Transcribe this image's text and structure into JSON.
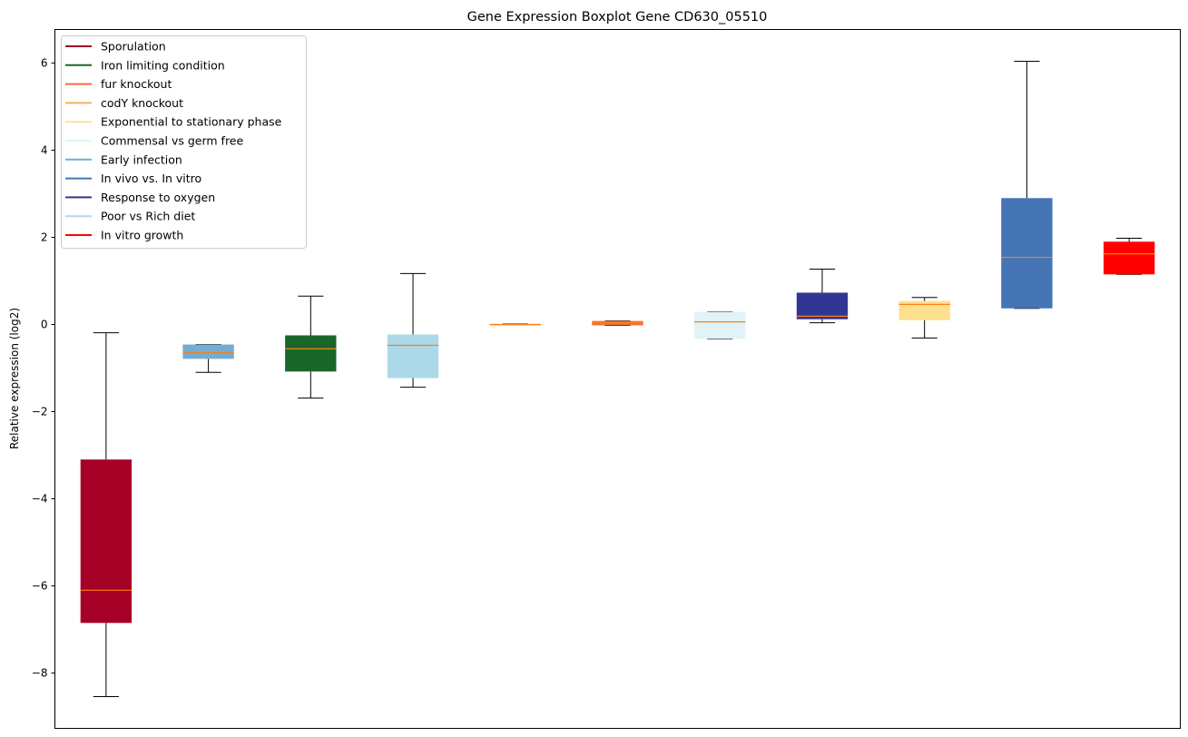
{
  "chart_data": {
    "type": "box",
    "title": "Gene Expression Boxplot Gene CD630_05510",
    "xlabel": "",
    "ylabel": "Relative expression (log2)",
    "ylim": [
      -9.27,
      6.77
    ],
    "xlim": [
      0.5,
      11.5
    ],
    "yticks": [
      6,
      4,
      2,
      0,
      -2,
      -4,
      -6,
      -8
    ],
    "ytick_labels": [
      "6",
      "4",
      "2",
      "0",
      "−2",
      "−4",
      "−6",
      "−8"
    ],
    "legend_position": "upper-left",
    "median_color": "#ff7f0e",
    "boxes": [
      {
        "name": "Sporulation",
        "color": "#a50026",
        "min": -8.54,
        "q1": -6.85,
        "median": -6.1,
        "q3": -3.1,
        "max": -0.19
      },
      {
        "name": "Early infection",
        "color": "#74add1",
        "min": -1.1,
        "q1": -0.79,
        "median": -0.65,
        "q3": -0.46,
        "max": -0.46
      },
      {
        "name": "Iron limiting condition",
        "color": "#1a6629",
        "min": -1.69,
        "q1": -1.08,
        "median": -0.56,
        "q3": -0.25,
        "max": 0.65
      },
      {
        "name": "Poor vs Rich diet",
        "color": "#abd9e9",
        "min": -1.44,
        "q1": -1.23,
        "median": -0.48,
        "q3": -0.23,
        "max": 1.17
      },
      {
        "name": "codY knockout",
        "color": "#fdae61",
        "min": -0.01,
        "q1": -0.01,
        "median": 0.0,
        "q3": 0.01,
        "max": 0.01
      },
      {
        "name": "fur knockout",
        "color": "#f46d43",
        "min": -0.02,
        "q1": -0.02,
        "median": 0.04,
        "q3": 0.08,
        "max": 0.08
      },
      {
        "name": "Commensal vs germ free",
        "color": "#e0f3f8",
        "min": -0.33,
        "q1": -0.33,
        "median": 0.06,
        "q3": 0.29,
        "max": 0.29
      },
      {
        "name": "Response to oxygen",
        "color": "#313695",
        "min": 0.04,
        "q1": 0.12,
        "median": 0.19,
        "q3": 0.73,
        "max": 1.27
      },
      {
        "name": "Exponential to stationary phase",
        "color": "#fee090",
        "min": -0.31,
        "q1": 0.1,
        "median": 0.46,
        "q3": 0.54,
        "max": 0.62
      },
      {
        "name": "In vivo vs. In vitro",
        "color": "#4575b4",
        "min": 0.37,
        "q1": 0.37,
        "median": 1.54,
        "q3": 2.9,
        "max": 6.04
      },
      {
        "name": "In vitro growth",
        "color": "#ff0000",
        "min": 1.15,
        "q1": 1.15,
        "median": 1.62,
        "q3": 1.9,
        "max": 1.98
      }
    ],
    "legend": [
      {
        "label": "Sporulation",
        "color": "#a50026"
      },
      {
        "label": "Iron limiting condition",
        "color": "#1a6629"
      },
      {
        "label": "fur knockout",
        "color": "#f46d43"
      },
      {
        "label": "codY knockout",
        "color": "#fdae61"
      },
      {
        "label": "Exponential to stationary phase",
        "color": "#fee090"
      },
      {
        "label": "Commensal vs germ free",
        "color": "#e0f3f8"
      },
      {
        "label": "Early infection",
        "color": "#74add1"
      },
      {
        "label": "In vivo vs. In vitro",
        "color": "#4575b4"
      },
      {
        "label": "Response to oxygen",
        "color": "#313695"
      },
      {
        "label": "Poor vs Rich diet",
        "color": "#abd9e9"
      },
      {
        "label": "In vitro growth",
        "color": "#ff0000"
      }
    ]
  }
}
